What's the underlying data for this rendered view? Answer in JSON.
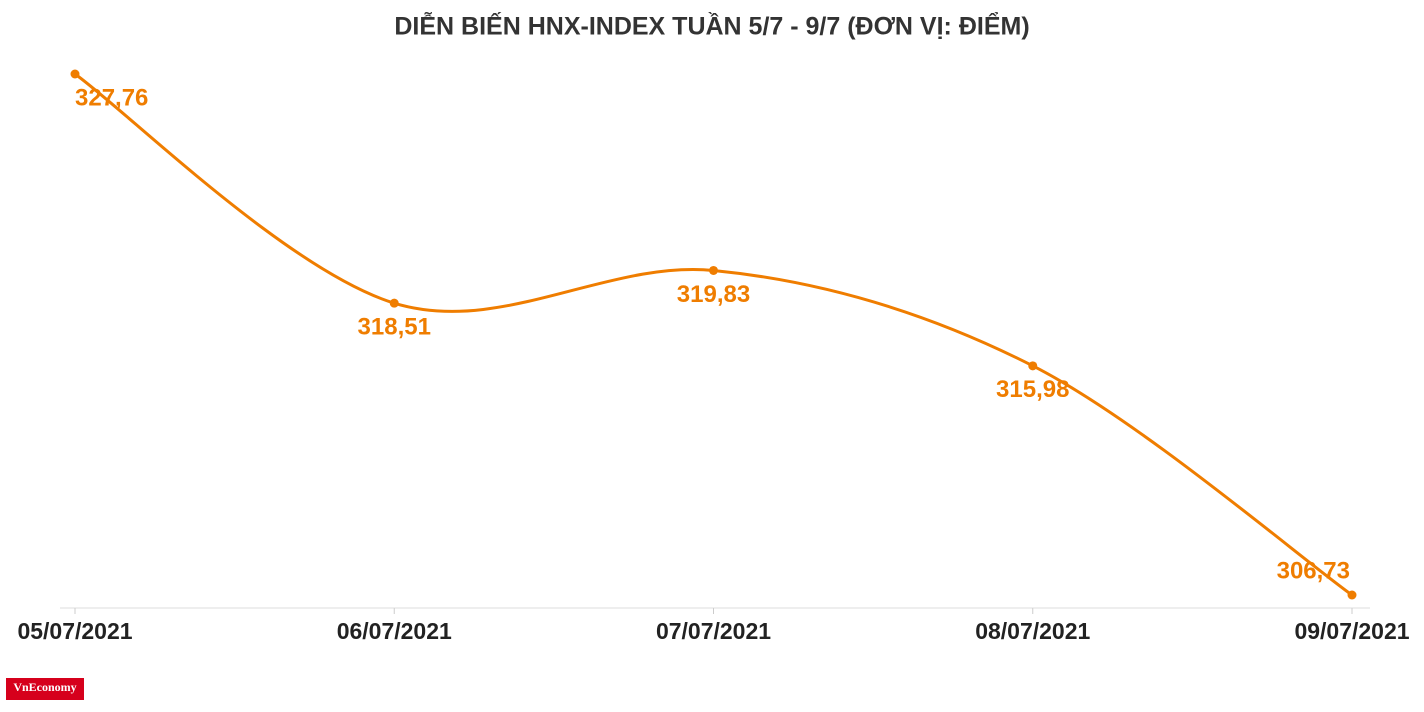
{
  "chart_data": {
    "type": "line",
    "title": "DIỄN BIẾN HNX-INDEX TUẦN 5/7 - 9/7 (ĐƠN VỊ: ĐIỂM)",
    "categories": [
      "05/07/2021",
      "06/07/2021",
      "07/07/2021",
      "08/07/2021",
      "09/07/2021"
    ],
    "series": [
      {
        "name": "HNX-Index",
        "color": "#ef7d00",
        "values": [
          327.76,
          318.51,
          319.83,
          315.98,
          306.73
        ],
        "value_labels": [
          "327,76",
          "318,51",
          "319,83",
          "315,98",
          "306,73"
        ]
      }
    ]
  },
  "logo": "VnEconomy"
}
